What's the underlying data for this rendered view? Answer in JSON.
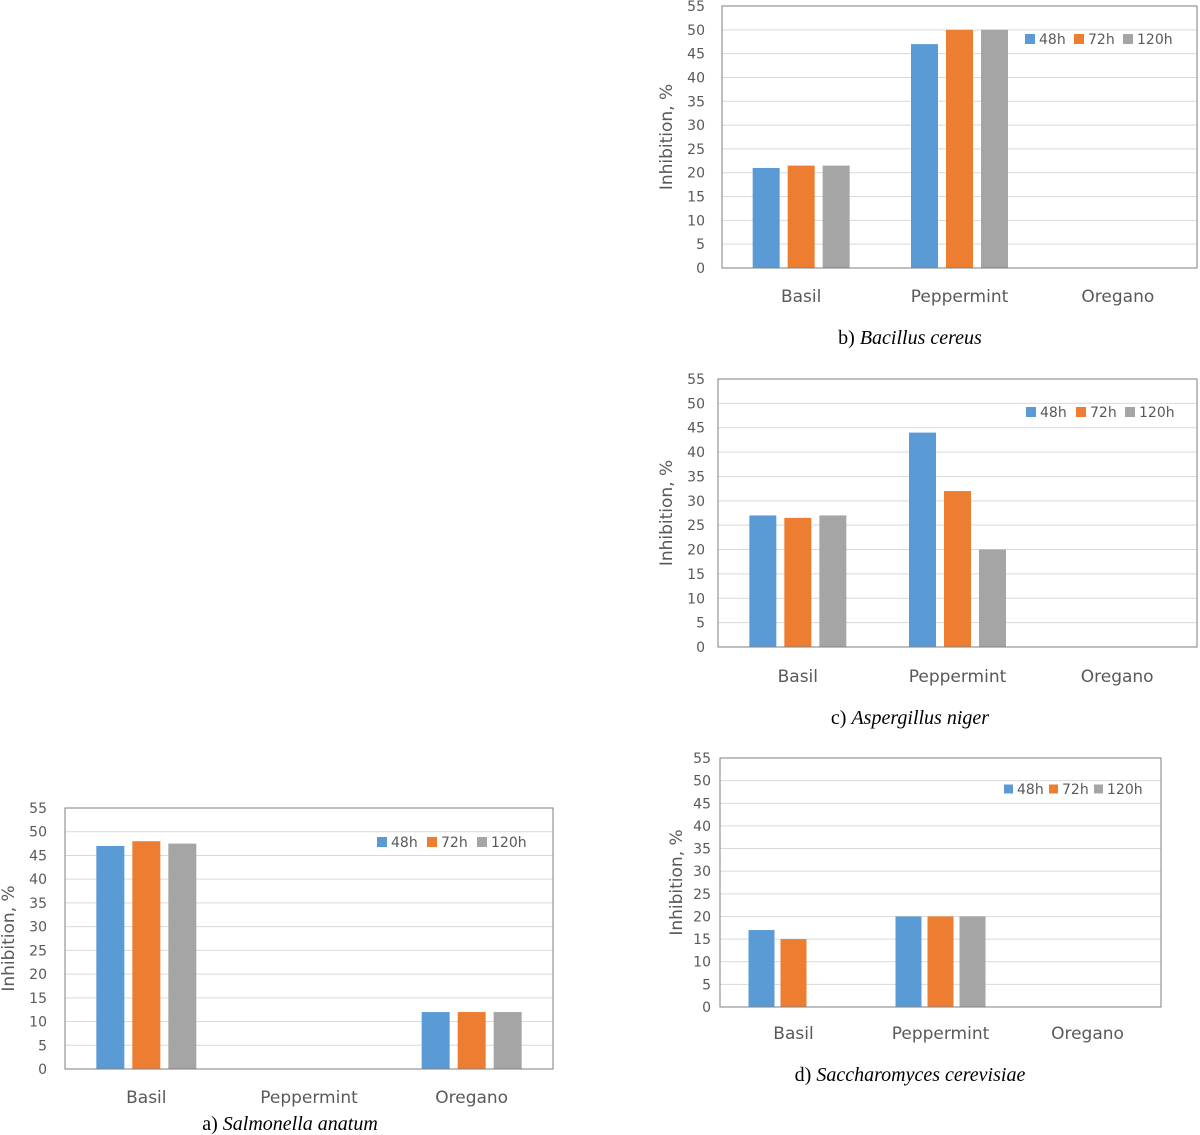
{
  "chart_data": [
    {
      "id": "b",
      "type": "bar",
      "caption_prefix": "b)",
      "caption_organism": "Bacillus cereus",
      "ylabel": "Inhibition, %",
      "xlabel": "",
      "ylim": [
        0,
        55
      ],
      "yticks": [
        0,
        5,
        10,
        15,
        20,
        25,
        30,
        35,
        40,
        45,
        50,
        55
      ],
      "categories": [
        "Basil",
        "Peppermint",
        "Oregano"
      ],
      "series": [
        {
          "name": "48h",
          "values": [
            21,
            47,
            0
          ]
        },
        {
          "name": "72h",
          "values": [
            21.5,
            50,
            0
          ]
        },
        {
          "name": "120h",
          "values": [
            21.5,
            50,
            0
          ]
        }
      ],
      "grid": true,
      "legend": "top-right"
    },
    {
      "id": "c",
      "type": "bar",
      "caption_prefix": "c)",
      "caption_organism": "Aspergillus niger",
      "ylabel": "Inhibition, %",
      "xlabel": "",
      "ylim": [
        0,
        55
      ],
      "yticks": [
        0,
        5,
        10,
        15,
        20,
        25,
        30,
        35,
        40,
        45,
        50,
        55
      ],
      "categories": [
        "Basil",
        "Peppermint",
        "Oregano"
      ],
      "series": [
        {
          "name": "48h",
          "values": [
            27,
            44,
            0
          ]
        },
        {
          "name": "72h",
          "values": [
            26.5,
            32,
            0
          ]
        },
        {
          "name": "120h",
          "values": [
            27,
            20,
            0
          ]
        }
      ],
      "grid": true,
      "legend": "top-right"
    },
    {
      "id": "a",
      "type": "bar",
      "caption_prefix": "a)",
      "caption_organism": "Salmonella anatum",
      "ylabel": "Inhibition, %",
      "xlabel": "",
      "ylim": [
        0,
        55
      ],
      "yticks": [
        0,
        5,
        10,
        15,
        20,
        25,
        30,
        35,
        40,
        45,
        50,
        55
      ],
      "categories": [
        "Basil",
        "Peppermint",
        "Oregano"
      ],
      "series": [
        {
          "name": "48h",
          "values": [
            47,
            0,
            12
          ]
        },
        {
          "name": "72h",
          "values": [
            48,
            0,
            12
          ]
        },
        {
          "name": "120h",
          "values": [
            47.5,
            0,
            12
          ]
        }
      ],
      "grid": true,
      "legend": "top-right"
    },
    {
      "id": "d",
      "type": "bar",
      "caption_prefix": "d)",
      "caption_organism": "Saccharomyces cerevisiae",
      "ylabel": "Inhibition, %",
      "xlabel": "",
      "ylim": [
        0,
        55
      ],
      "yticks": [
        0,
        5,
        10,
        15,
        20,
        25,
        30,
        35,
        40,
        45,
        50,
        55
      ],
      "categories": [
        "Basil",
        "Peppermint",
        "Oregano"
      ],
      "series": [
        {
          "name": "48h",
          "values": [
            17,
            20,
            0
          ]
        },
        {
          "name": "72h",
          "values": [
            15,
            20,
            0
          ]
        },
        {
          "name": "120h",
          "values": [
            0,
            20,
            0
          ]
        }
      ],
      "grid": true,
      "legend": "top-right"
    }
  ],
  "colors": {
    "48h": "#5B9BD5",
    "72h": "#ED7D31",
    "120h": "#A5A5A5",
    "grid": "#D9D9D9",
    "border": "#7F7F7F"
  }
}
